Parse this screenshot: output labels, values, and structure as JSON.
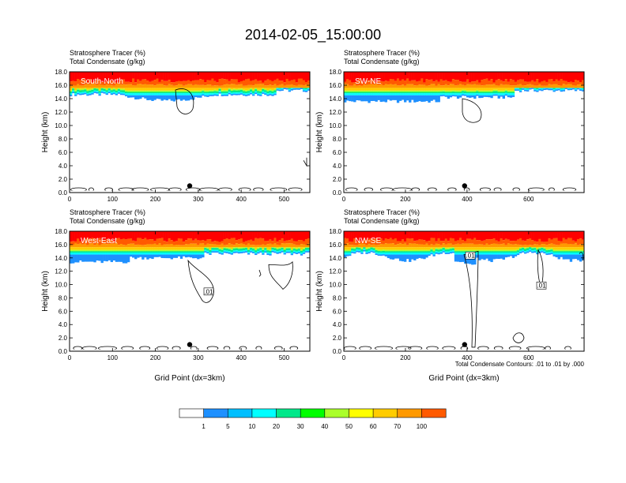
{
  "figure_title": "2014-02-05_15:00:00",
  "colors": {
    "levels": [
      "#ffffff",
      "#1e90ff",
      "#00bfff",
      "#00ffff",
      "#00e88a",
      "#00ff00",
      "#aaff2a",
      "#ffff00",
      "#ffcc00",
      "#ff9900",
      "#ff5a00",
      "#ff0000"
    ],
    "contour": "#000000",
    "marker": "#000000"
  },
  "colorbar": {
    "labels": [
      "1",
      "5",
      "10",
      "20",
      "30",
      "40",
      "50",
      "60",
      "70",
      "100"
    ]
  },
  "contour_note": "Total Condensate Contours: .01 to .01 by .000",
  "chart_data": [
    {
      "type": "heatmap",
      "panel_label": "South-North",
      "title_line1": "Stratosphere Tracer   (%)",
      "title_line2": "Total Condensate   (g/kg)",
      "ylabel": "Height (km)",
      "xlabel": "",
      "xlim": [
        0,
        560
      ],
      "ylim": [
        0,
        18
      ],
      "xticks": [
        "0",
        "100",
        "200",
        "300",
        "400",
        "500"
      ],
      "yticks": [
        "0.0",
        "2.0",
        "4.0",
        "6.0",
        "8.0",
        "10.0",
        "12.0",
        "14.0",
        "16.0",
        "18.0"
      ],
      "marker_x": 280,
      "contour_labels": []
    },
    {
      "type": "heatmap",
      "panel_label": "SW-NE",
      "title_line1": "Stratosphere Tracer   (%)",
      "title_line2": "Total Condensate   (g/kg)",
      "ylabel": "Height (km)",
      "xlabel": "",
      "xlim": [
        0,
        780
      ],
      "ylim": [
        0,
        18
      ],
      "xticks": [
        "0",
        "200",
        "400",
        "600"
      ],
      "yticks": [
        "0.0",
        "2.0",
        "4.0",
        "6.0",
        "8.0",
        "10.0",
        "12.0",
        "14.0",
        "16.0",
        "18.0"
      ],
      "marker_x": 392,
      "contour_labels": []
    },
    {
      "type": "heatmap",
      "panel_label": "West-East",
      "title_line1": "Stratosphere Tracer   (%)",
      "title_line2": "Total Condensate   (g/kg)",
      "ylabel": "Height (km)",
      "xlabel": "Grid Point (dx=3km)",
      "xlim": [
        0,
        560
      ],
      "ylim": [
        0,
        18
      ],
      "xticks": [
        "0",
        "100",
        "200",
        "300",
        "400",
        "500"
      ],
      "yticks": [
        "0.0",
        "2.0",
        "4.0",
        "6.0",
        "8.0",
        "10.0",
        "12.0",
        "14.0",
        "16.0",
        "18.0"
      ],
      "marker_x": 280,
      "contour_labels": [
        ".01"
      ]
    },
    {
      "type": "heatmap",
      "panel_label": "NW-SE",
      "title_line1": "Stratosphere Tracer   (%)",
      "title_line2": "Total Condensate   (g/kg)",
      "ylabel": "Height (km)",
      "xlabel": "Grid Point (dx=3km)",
      "xlim": [
        0,
        780
      ],
      "ylim": [
        0,
        18
      ],
      "xticks": [
        "0",
        "200",
        "400",
        "600"
      ],
      "yticks": [
        "0.0",
        "2.0",
        "4.0",
        "6.0",
        "8.0",
        "10.0",
        "12.0",
        "14.0",
        "16.0",
        "18.0"
      ],
      "marker_x": 392,
      "contour_labels": [
        ".01",
        ".01"
      ]
    }
  ]
}
